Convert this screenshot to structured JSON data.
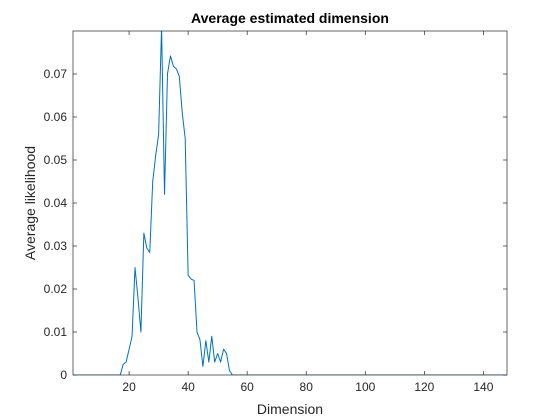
{
  "chart_data": {
    "type": "line",
    "title": "Average estimated dimension",
    "xlabel": "Dimension",
    "ylabel": "Average likelihood",
    "xlim": [
      1,
      148
    ],
    "ylim": [
      0,
      0.08
    ],
    "xticks": [
      20,
      40,
      60,
      80,
      100,
      120,
      140
    ],
    "yticks": [
      0,
      0.01,
      0.02,
      0.03,
      0.04,
      0.05,
      0.06,
      0.07
    ],
    "ytick_labels": [
      "0",
      "0.01",
      "0.02",
      "0.03",
      "0.04",
      "0.05",
      "0.06",
      "0.07"
    ],
    "grid": false,
    "box": true,
    "series_color": "#0072BD",
    "series": [
      {
        "x": [
          1,
          17,
          18,
          19,
          20,
          21,
          22,
          23,
          24,
          25,
          26,
          27,
          28,
          29,
          30,
          31,
          32,
          33,
          34,
          35,
          36,
          37,
          38,
          39,
          40,
          41,
          42,
          43,
          44,
          45,
          46,
          47,
          48,
          49,
          50,
          51,
          52,
          53,
          54,
          55,
          56,
          57,
          148
        ],
        "y": [
          0,
          0,
          0.0025,
          0.003,
          0.006,
          0.009,
          0.025,
          0.018,
          0.01,
          0.033,
          0.0295,
          0.0285,
          0.045,
          0.051,
          0.056,
          0.081,
          0.042,
          0.07,
          0.0742,
          0.0718,
          0.0712,
          0.0695,
          0.061,
          0.055,
          0.0232,
          0.0223,
          0.022,
          0.01,
          0.0082,
          0.002,
          0.008,
          0.003,
          0.009,
          0.003,
          0.005,
          0.003,
          0.006,
          0.005,
          0.001,
          0,
          0,
          0,
          0
        ]
      }
    ]
  }
}
